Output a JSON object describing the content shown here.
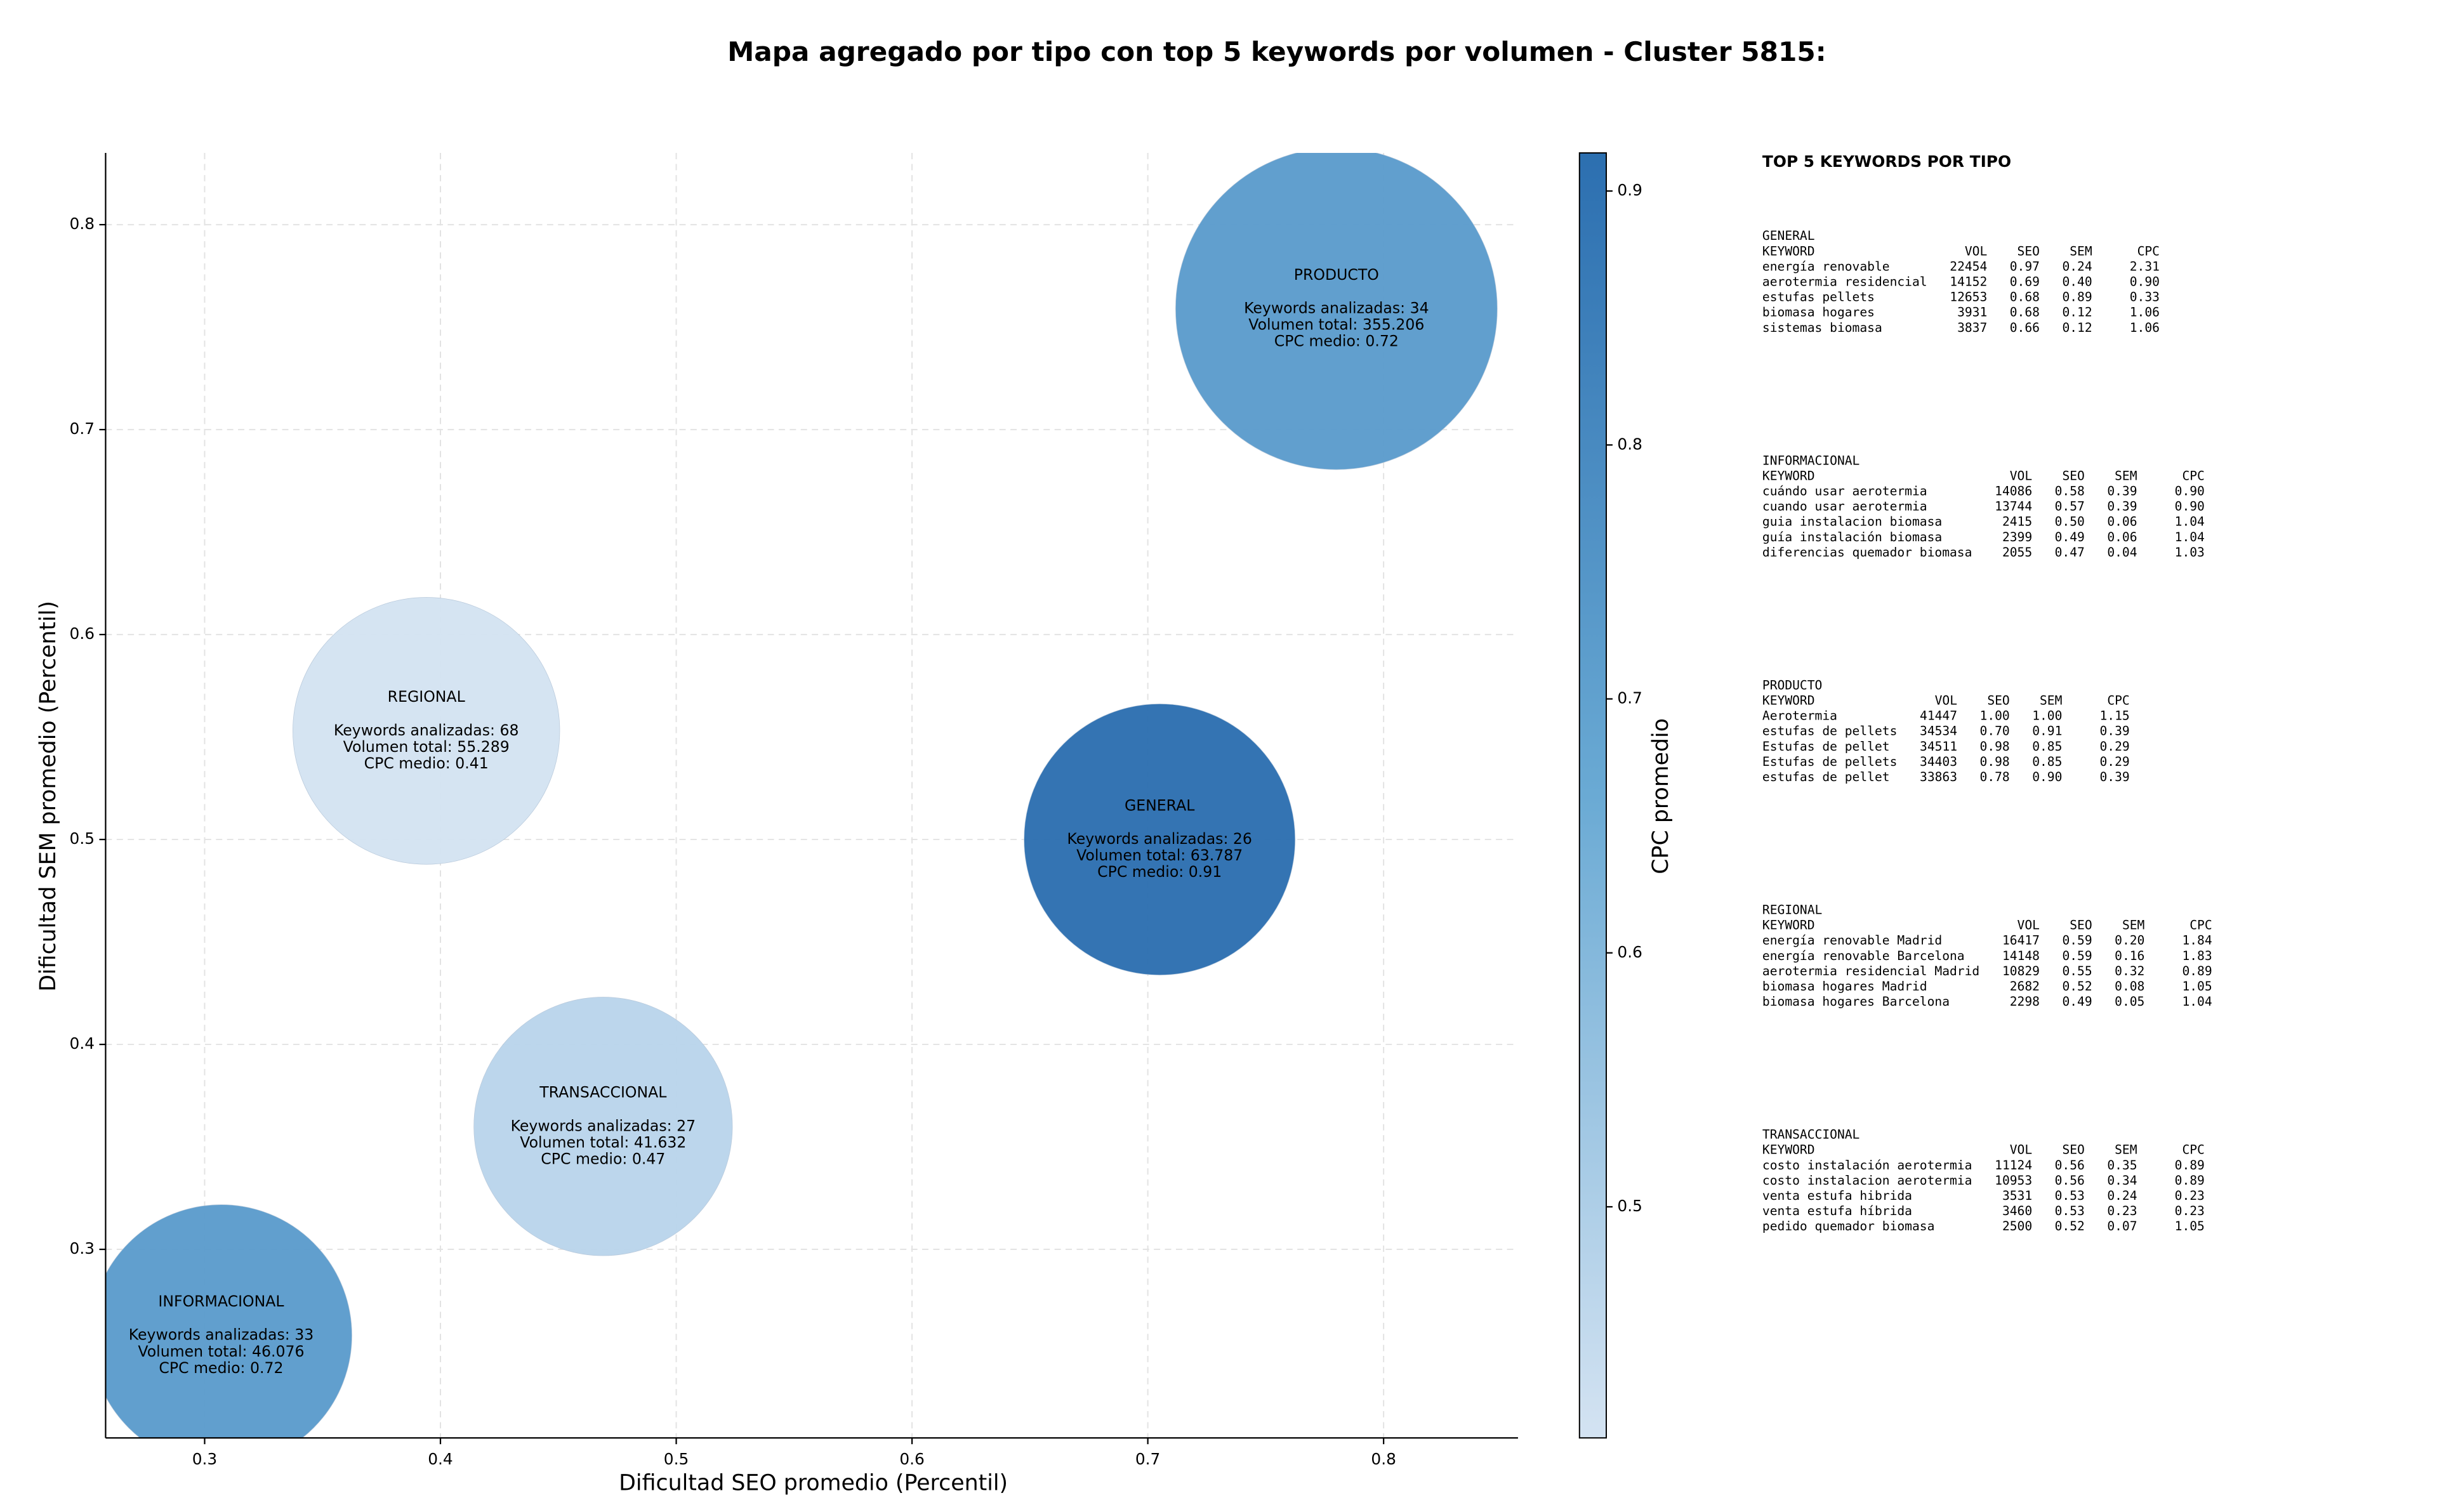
{
  "chart_data": {
    "type": "bubble",
    "title": "Mapa agregado por tipo con top 5 keywords por volumen - Cluster 5815:",
    "xlabel": "Dificultad SEO promedio (Percentil)",
    "ylabel": "Dificultad SEM promedio (Percentil)",
    "xlim": [
      0.258,
      0.857
    ],
    "ylim": [
      0.208,
      0.835
    ],
    "xticks": [
      0.3,
      0.4,
      0.5,
      0.6,
      0.7,
      0.8
    ],
    "yticks": [
      0.3,
      0.4,
      0.5,
      0.6,
      0.7,
      0.8
    ],
    "grid": true,
    "colorbar": {
      "label": "CPC promedio",
      "lim": [
        0.409,
        0.915
      ],
      "ticks": [
        0.5,
        0.6,
        0.7,
        0.8,
        0.9
      ],
      "colors": [
        "#d4e3f2",
        "#6aaad4",
        "#2c6fb0"
      ]
    },
    "annotation_labels": {
      "keywords": "Keywords analizadas:",
      "volume": "Volumen total:",
      "cpc": "CPC medio:"
    },
    "points": [
      {
        "name": "PRODUCTO",
        "x": 0.78,
        "y": 0.759,
        "keywords": 34,
        "volume": 355206,
        "volume_label": "355.206",
        "cpc": 0.72
      },
      {
        "name": "REGIONAL",
        "x": 0.394,
        "y": 0.553,
        "keywords": 68,
        "volume": 55289,
        "volume_label": "55.289",
        "cpc": 0.41
      },
      {
        "name": "GENERAL",
        "x": 0.705,
        "y": 0.5,
        "keywords": 26,
        "volume": 63787,
        "volume_label": "63.787",
        "cpc": 0.91
      },
      {
        "name": "TRANSACCIONAL",
        "x": 0.469,
        "y": 0.36,
        "keywords": 27,
        "volume": 41632,
        "volume_label": "41.632",
        "cpc": 0.47
      },
      {
        "name": "INFORMACIONAL",
        "x": 0.307,
        "y": 0.258,
        "keywords": 33,
        "volume": 46076,
        "volume_label": "46.076",
        "cpc": 0.72
      }
    ]
  },
  "keywords_panel": {
    "title": "TOP 5 KEYWORDS POR TIPO",
    "header": [
      "KEYWORD",
      "VOL",
      "SEO",
      "SEM",
      "CPC"
    ],
    "groups": [
      {
        "name": "GENERAL",
        "rows": [
          [
            "energía renovable",
            "22454",
            "0.97",
            "0.24",
            "2.31"
          ],
          [
            "aerotermia residencial",
            "14152",
            "0.69",
            "0.40",
            "0.90"
          ],
          [
            "estufas pellets",
            "12653",
            "0.68",
            "0.89",
            "0.33"
          ],
          [
            "biomasa hogares",
            "3931",
            "0.68",
            "0.12",
            "1.06"
          ],
          [
            "sistemas biomasa",
            "3837",
            "0.66",
            "0.12",
            "1.06"
          ]
        ]
      },
      {
        "name": "INFORMACIONAL",
        "rows": [
          [
            "cuándo usar aerotermia",
            "14086",
            "0.58",
            "0.39",
            "0.90"
          ],
          [
            "cuando usar aerotermia",
            "13744",
            "0.57",
            "0.39",
            "0.90"
          ],
          [
            "guia instalacion biomasa",
            "2415",
            "0.50",
            "0.06",
            "1.04"
          ],
          [
            "guía instalación biomasa",
            "2399",
            "0.49",
            "0.06",
            "1.04"
          ],
          [
            "diferencias quemador biomasa",
            "2055",
            "0.47",
            "0.04",
            "1.03"
          ]
        ]
      },
      {
        "name": "PRODUCTO",
        "rows": [
          [
            "Aerotermia",
            "41447",
            "1.00",
            "1.00",
            "1.15"
          ],
          [
            "estufas de pellets",
            "34534",
            "0.70",
            "0.91",
            "0.39"
          ],
          [
            "Estufas de pellet",
            "34511",
            "0.98",
            "0.85",
            "0.29"
          ],
          [
            "Estufas de pellets",
            "34403",
            "0.98",
            "0.85",
            "0.29"
          ],
          [
            "estufas de pellet",
            "33863",
            "0.78",
            "0.90",
            "0.39"
          ]
        ]
      },
      {
        "name": "REGIONAL",
        "rows": [
          [
            "energía renovable Madrid",
            "16417",
            "0.59",
            "0.20",
            "1.84"
          ],
          [
            "energía renovable Barcelona",
            "14148",
            "0.59",
            "0.16",
            "1.83"
          ],
          [
            "aerotermia residencial Madrid",
            "10829",
            "0.55",
            "0.32",
            "0.89"
          ],
          [
            "biomasa hogares Madrid",
            "2682",
            "0.52",
            "0.08",
            "1.05"
          ],
          [
            "biomasa hogares Barcelona",
            "2298",
            "0.49",
            "0.05",
            "1.04"
          ]
        ]
      },
      {
        "name": "TRANSACCIONAL",
        "rows": [
          [
            "costo instalación aerotermia",
            "11124",
            "0.56",
            "0.35",
            "0.89"
          ],
          [
            "costo instalacion aerotermia",
            "10953",
            "0.56",
            "0.34",
            "0.89"
          ],
          [
            "venta estufa hibrida",
            "3531",
            "0.53",
            "0.24",
            "0.23"
          ],
          [
            "venta estufa híbrida",
            "3460",
            "0.53",
            "0.23",
            "0.23"
          ],
          [
            "pedido quemador biomasa",
            "2500",
            "0.52",
            "0.07",
            "1.05"
          ]
        ]
      }
    ]
  }
}
